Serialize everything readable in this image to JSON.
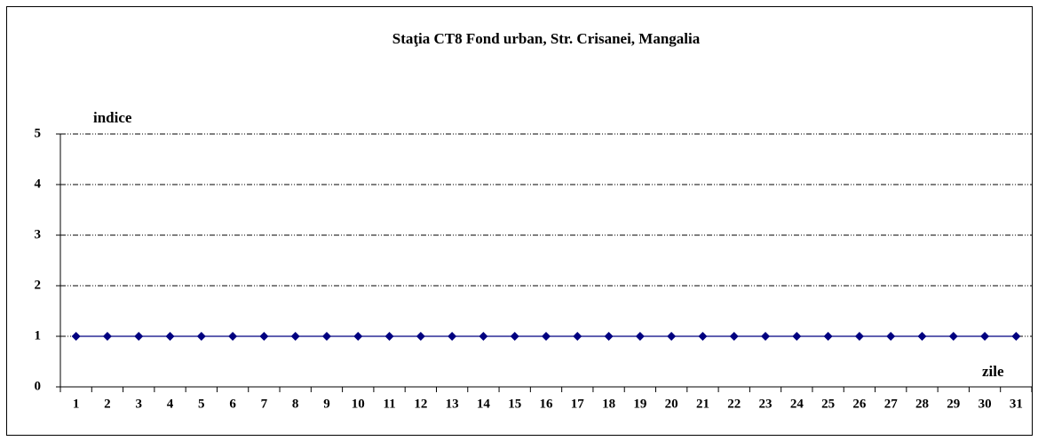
{
  "chart_data": {
    "type": "line",
    "title": "Staţia CT8 Fond urban, Str. Crisanei, Mangalia",
    "y_label": "indice",
    "x_label": "zile",
    "categories": [
      "1",
      "2",
      "3",
      "4",
      "5",
      "6",
      "7",
      "8",
      "9",
      "10",
      "11",
      "12",
      "13",
      "14",
      "15",
      "16",
      "17",
      "18",
      "19",
      "20",
      "21",
      "22",
      "23",
      "24",
      "25",
      "26",
      "27",
      "28",
      "29",
      "30",
      "31"
    ],
    "values": [
      1,
      1,
      1,
      1,
      1,
      1,
      1,
      1,
      1,
      1,
      1,
      1,
      1,
      1,
      1,
      1,
      1,
      1,
      1,
      1,
      1,
      1,
      1,
      1,
      1,
      1,
      1,
      1,
      1,
      1,
      1
    ],
    "color": "#000080",
    "ylim": [
      0,
      5
    ],
    "yticks": [
      0,
      1,
      2,
      3,
      4,
      5
    ],
    "grid": true
  }
}
